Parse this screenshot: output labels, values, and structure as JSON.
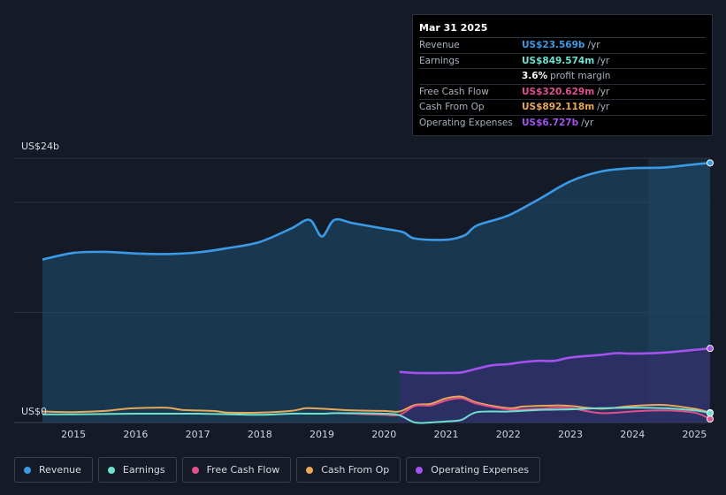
{
  "tooltip": {
    "date": "Mar 31 2025",
    "rows": [
      {
        "label": "Revenue",
        "value": "US$23.569b",
        "unit": "/yr",
        "color": "#3b9ae6"
      },
      {
        "label": "Earnings",
        "value": "US$849.574m",
        "unit": "/yr",
        "color": "#6fe0cf"
      },
      {
        "label": "",
        "value": "3.6%",
        "unit": "profit margin",
        "color": "#ffffff"
      },
      {
        "label": "Free Cash Flow",
        "value": "US$320.629m",
        "unit": "/yr",
        "color": "#e0508c"
      },
      {
        "label": "Cash From Op",
        "value": "US$892.118m",
        "unit": "/yr",
        "color": "#e8a85a"
      },
      {
        "label": "Operating Expenses",
        "value": "US$6.727b",
        "unit": "/yr",
        "color": "#a352f0"
      }
    ]
  },
  "legend": [
    {
      "label": "Revenue",
      "color": "#3b9ae6"
    },
    {
      "label": "Earnings",
      "color": "#6fe0cf"
    },
    {
      "label": "Free Cash Flow",
      "color": "#e0508c"
    },
    {
      "label": "Cash From Op",
      "color": "#e8a85a"
    },
    {
      "label": "Operating Expenses",
      "color": "#a352f0"
    }
  ],
  "chart_data": {
    "type": "area",
    "ylabel_top": "US$24b",
    "ylabel_bottom": "US$0",
    "ylim": [
      0,
      24
    ],
    "xlim": [
      2014.5,
      2025.25
    ],
    "x_ticks": [
      "2015",
      "2016",
      "2017",
      "2018",
      "2019",
      "2020",
      "2021",
      "2022",
      "2023",
      "2024",
      "2025"
    ],
    "series": [
      {
        "name": "Revenue",
        "color": "#3b9ae6",
        "fill": true,
        "points": [
          [
            2014.5,
            14.8
          ],
          [
            2015.0,
            15.4
          ],
          [
            2015.5,
            15.5
          ],
          [
            2016.0,
            15.35
          ],
          [
            2016.5,
            15.3
          ],
          [
            2017.0,
            15.45
          ],
          [
            2017.5,
            15.85
          ],
          [
            2018.0,
            16.4
          ],
          [
            2018.5,
            17.6
          ],
          [
            2018.8,
            18.4
          ],
          [
            2019.0,
            16.9
          ],
          [
            2019.2,
            18.4
          ],
          [
            2019.5,
            18.1
          ],
          [
            2020.0,
            17.6
          ],
          [
            2020.3,
            17.3
          ],
          [
            2020.5,
            16.7
          ],
          [
            2021.0,
            16.6
          ],
          [
            2021.3,
            17.0
          ],
          [
            2021.5,
            17.9
          ],
          [
            2022.0,
            18.8
          ],
          [
            2022.5,
            20.3
          ],
          [
            2023.0,
            21.9
          ],
          [
            2023.5,
            22.8
          ],
          [
            2024.0,
            23.1
          ],
          [
            2024.5,
            23.15
          ],
          [
            2025.0,
            23.45
          ],
          [
            2025.25,
            23.57
          ]
        ]
      },
      {
        "name": "Operating Expenses",
        "color": "#a352f0",
        "fill": true,
        "points": [
          [
            2020.25,
            4.6
          ],
          [
            2020.5,
            4.5
          ],
          [
            2021.0,
            4.5
          ],
          [
            2021.25,
            4.55
          ],
          [
            2021.5,
            4.9
          ],
          [
            2021.75,
            5.2
          ],
          [
            2022.0,
            5.3
          ],
          [
            2022.25,
            5.5
          ],
          [
            2022.5,
            5.6
          ],
          [
            2022.75,
            5.6
          ],
          [
            2023.0,
            5.9
          ],
          [
            2023.5,
            6.15
          ],
          [
            2023.75,
            6.3
          ],
          [
            2024.0,
            6.25
          ],
          [
            2024.5,
            6.35
          ],
          [
            2025.0,
            6.6
          ],
          [
            2025.25,
            6.73
          ]
        ]
      },
      {
        "name": "Cash From Op",
        "color": "#e8a85a",
        "fill": false,
        "points": [
          [
            2014.5,
            1.0
          ],
          [
            2015.0,
            0.95
          ],
          [
            2015.5,
            1.05
          ],
          [
            2015.75,
            1.2
          ],
          [
            2016.0,
            1.3
          ],
          [
            2016.5,
            1.35
          ],
          [
            2016.75,
            1.15
          ],
          [
            2017.25,
            1.05
          ],
          [
            2017.5,
            0.9
          ],
          [
            2018.0,
            0.9
          ],
          [
            2018.5,
            1.05
          ],
          [
            2018.75,
            1.3
          ],
          [
            2019.0,
            1.25
          ],
          [
            2019.5,
            1.1
          ],
          [
            2020.0,
            1.05
          ],
          [
            2020.25,
            1.0
          ],
          [
            2020.5,
            1.6
          ],
          [
            2020.75,
            1.7
          ],
          [
            2021.0,
            2.2
          ],
          [
            2021.25,
            2.35
          ],
          [
            2021.5,
            1.8
          ],
          [
            2022.0,
            1.3
          ],
          [
            2022.25,
            1.45
          ],
          [
            2022.75,
            1.55
          ],
          [
            2023.0,
            1.5
          ],
          [
            2023.5,
            1.25
          ],
          [
            2024.0,
            1.5
          ],
          [
            2024.5,
            1.6
          ],
          [
            2025.0,
            1.25
          ],
          [
            2025.25,
            0.89
          ]
        ]
      },
      {
        "name": "Free Cash Flow",
        "color": "#e0508c",
        "fill": false,
        "points": [
          [
            2019.25,
            0.85
          ],
          [
            2019.75,
            0.75
          ],
          [
            2020.0,
            0.7
          ],
          [
            2020.25,
            0.7
          ],
          [
            2020.5,
            1.5
          ],
          [
            2020.75,
            1.55
          ],
          [
            2021.0,
            2.0
          ],
          [
            2021.25,
            2.2
          ],
          [
            2021.5,
            1.7
          ],
          [
            2022.0,
            1.2
          ],
          [
            2022.5,
            1.25
          ],
          [
            2022.75,
            1.35
          ],
          [
            2023.0,
            1.3
          ],
          [
            2023.5,
            0.85
          ],
          [
            2024.0,
            1.0
          ],
          [
            2024.5,
            1.1
          ],
          [
            2025.0,
            0.9
          ],
          [
            2025.25,
            0.32
          ]
        ]
      },
      {
        "name": "Earnings",
        "color": "#6fe0cf",
        "fill": false,
        "points": [
          [
            2014.5,
            0.75
          ],
          [
            2015.0,
            0.75
          ],
          [
            2016.0,
            0.8
          ],
          [
            2017.0,
            0.8
          ],
          [
            2018.0,
            0.7
          ],
          [
            2018.5,
            0.8
          ],
          [
            2019.0,
            0.8
          ],
          [
            2019.25,
            0.85
          ],
          [
            2020.0,
            0.8
          ],
          [
            2020.25,
            0.65
          ],
          [
            2020.5,
            0.0
          ],
          [
            2020.75,
            0.0
          ],
          [
            2021.0,
            0.1
          ],
          [
            2021.25,
            0.25
          ],
          [
            2021.5,
            0.95
          ],
          [
            2022.0,
            1.0
          ],
          [
            2022.5,
            1.15
          ],
          [
            2023.0,
            1.2
          ],
          [
            2023.5,
            1.3
          ],
          [
            2024.0,
            1.35
          ],
          [
            2024.5,
            1.3
          ],
          [
            2025.0,
            1.1
          ],
          [
            2025.25,
            0.85
          ]
        ]
      }
    ]
  }
}
